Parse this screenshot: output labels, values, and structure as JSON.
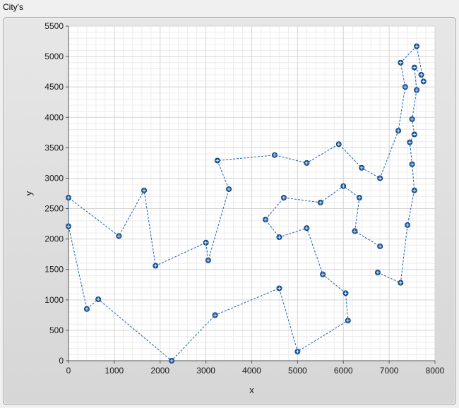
{
  "panel": {
    "title": "City's"
  },
  "colors": {
    "marker": "#1f5fa6",
    "line": "#2f6db5",
    "grid_major": "#d4d4d4",
    "grid_minor": "#ececec",
    "plot_bg": "#ffffff"
  },
  "chart_data": {
    "type": "line",
    "title": "",
    "xlabel": "x",
    "ylabel": "y",
    "xlim": [
      0,
      8000
    ],
    "ylim": [
      0,
      5500
    ],
    "xticks": [
      0,
      1000,
      2000,
      3000,
      4000,
      5000,
      6000,
      7000,
      8000
    ],
    "yticks": [
      0,
      500,
      1000,
      1500,
      2000,
      2500,
      3000,
      3500,
      4000,
      4500,
      5000,
      5500
    ],
    "grid": true,
    "line_style": "dashed",
    "marker": "circle-crosshair",
    "series": [
      {
        "points": [
          [
            6750,
            1450
          ],
          [
            7250,
            1280
          ],
          [
            7400,
            2230
          ],
          [
            7550,
            2800
          ],
          [
            7500,
            3230
          ],
          [
            7450,
            3590
          ],
          [
            7550,
            3720
          ],
          [
            7500,
            3970
          ],
          [
            7600,
            4450
          ],
          [
            7550,
            4820
          ],
          [
            7700,
            4700
          ],
          [
            7750,
            4590
          ],
          [
            7600,
            5170
          ],
          [
            7250,
            4900
          ],
          [
            7350,
            4500
          ],
          [
            7200,
            3780
          ],
          [
            6800,
            3000
          ],
          [
            6400,
            3170
          ],
          [
            5900,
            3560
          ],
          [
            5200,
            3250
          ],
          [
            4500,
            3380
          ],
          [
            3250,
            3290
          ],
          [
            3500,
            2820
          ],
          [
            3050,
            1650
          ],
          [
            3000,
            1940
          ],
          [
            1900,
            1560
          ],
          [
            1650,
            2800
          ],
          [
            1100,
            2050
          ],
          [
            0,
            2680
          ],
          [
            0,
            2210
          ],
          [
            400,
            850
          ],
          [
            650,
            1010
          ],
          [
            2250,
            0
          ],
          [
            3200,
            750
          ],
          [
            4600,
            1190
          ],
          [
            5000,
            150
          ],
          [
            6100,
            660
          ],
          [
            6050,
            1110
          ],
          [
            5550,
            1420
          ],
          [
            5200,
            2180
          ],
          [
            4600,
            2030
          ],
          [
            4300,
            2320
          ],
          [
            4700,
            2680
          ],
          [
            5500,
            2600
          ],
          [
            6000,
            2870
          ],
          [
            6350,
            2680
          ],
          [
            6250,
            2130
          ],
          [
            6800,
            1880
          ]
        ]
      }
    ]
  }
}
